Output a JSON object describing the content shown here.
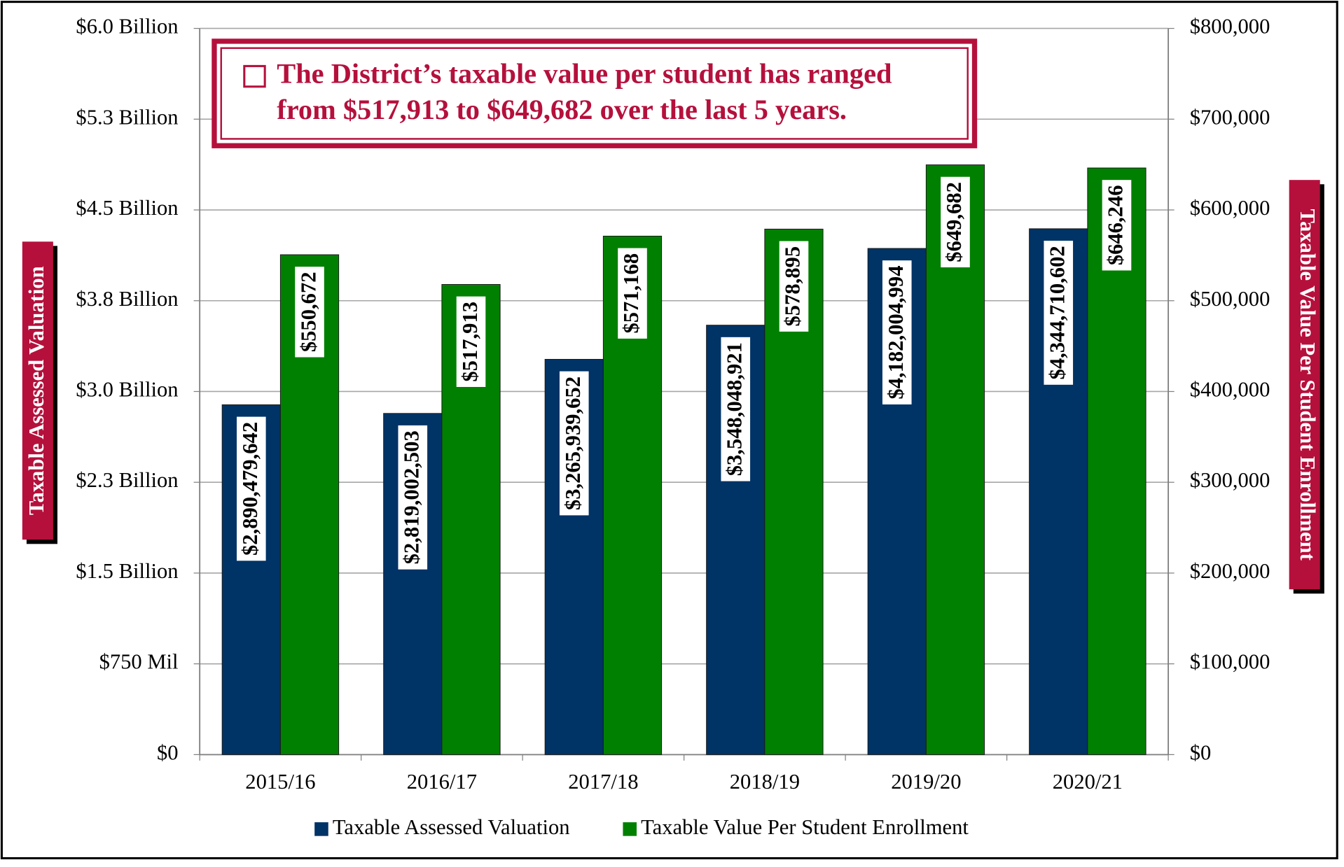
{
  "chart_data": {
    "type": "bar",
    "annotation": [
      "The District’s taxable value per student has ranged",
      "from $517,913 to $649,682 over the last 5 years."
    ],
    "y_label": "Taxable Assessed Valuation",
    "y2_label": "Taxable Value Per Student Enrollment",
    "categories": [
      "2015/16",
      "2016/17",
      "2017/18",
      "2018/19",
      "2019/20",
      "2020/21"
    ],
    "series": [
      {
        "name": "Taxable Assessed Valuation",
        "color": "#003366",
        "axis": "y",
        "values": [
          2890479642,
          2819002503,
          3265939652,
          3548048921,
          4182004994,
          4344710602
        ],
        "value_labels": [
          "$2,890,479,642",
          "$2,819,002,503",
          "$3,265,939,652",
          "$3,548,048,921",
          "$4,182,004,994",
          "$4,344,710,602"
        ]
      },
      {
        "name": "Taxable Value Per Student Enrollment",
        "color": "#008000",
        "axis": "y2",
        "values": [
          550672,
          517913,
          571168,
          578895,
          649682,
          646246
        ],
        "value_labels": [
          "$550,672",
          "$517,913",
          "$571,168",
          "$578,895",
          "$649,682",
          "$646,246"
        ]
      }
    ],
    "ylim": [
      0,
      6000000000
    ],
    "yticks": [
      {
        "value": 0,
        "label": "$0"
      },
      {
        "value": 750000000,
        "label": "$750 Mil"
      },
      {
        "value": 1500000000,
        "label": "$1.5 Billion"
      },
      {
        "value": 2250000000,
        "label": "$2.3 Billion"
      },
      {
        "value": 3000000000,
        "label": "$3.0 Billion"
      },
      {
        "value": 3750000000,
        "label": "$3.8 Billion"
      },
      {
        "value": 4500000000,
        "label": "$4.5 Billion"
      },
      {
        "value": 5250000000,
        "label": "$5.3 Billion"
      },
      {
        "value": 6000000000,
        "label": "$6.0 Billion"
      }
    ],
    "y2lim": [
      0,
      800000
    ],
    "y2ticks": [
      {
        "value": 0,
        "label": "$0"
      },
      {
        "value": 100000,
        "label": "$100,000"
      },
      {
        "value": 200000,
        "label": "$200,000"
      },
      {
        "value": 300000,
        "label": "$300,000"
      },
      {
        "value": 400000,
        "label": "$400,000"
      },
      {
        "value": 500000,
        "label": "$500,000"
      },
      {
        "value": 600000,
        "label": "$600,000"
      },
      {
        "value": 700000,
        "label": "$700,000"
      },
      {
        "value": 800000,
        "label": "$800,000"
      }
    ],
    "grid": true,
    "legend": "bottom"
  }
}
